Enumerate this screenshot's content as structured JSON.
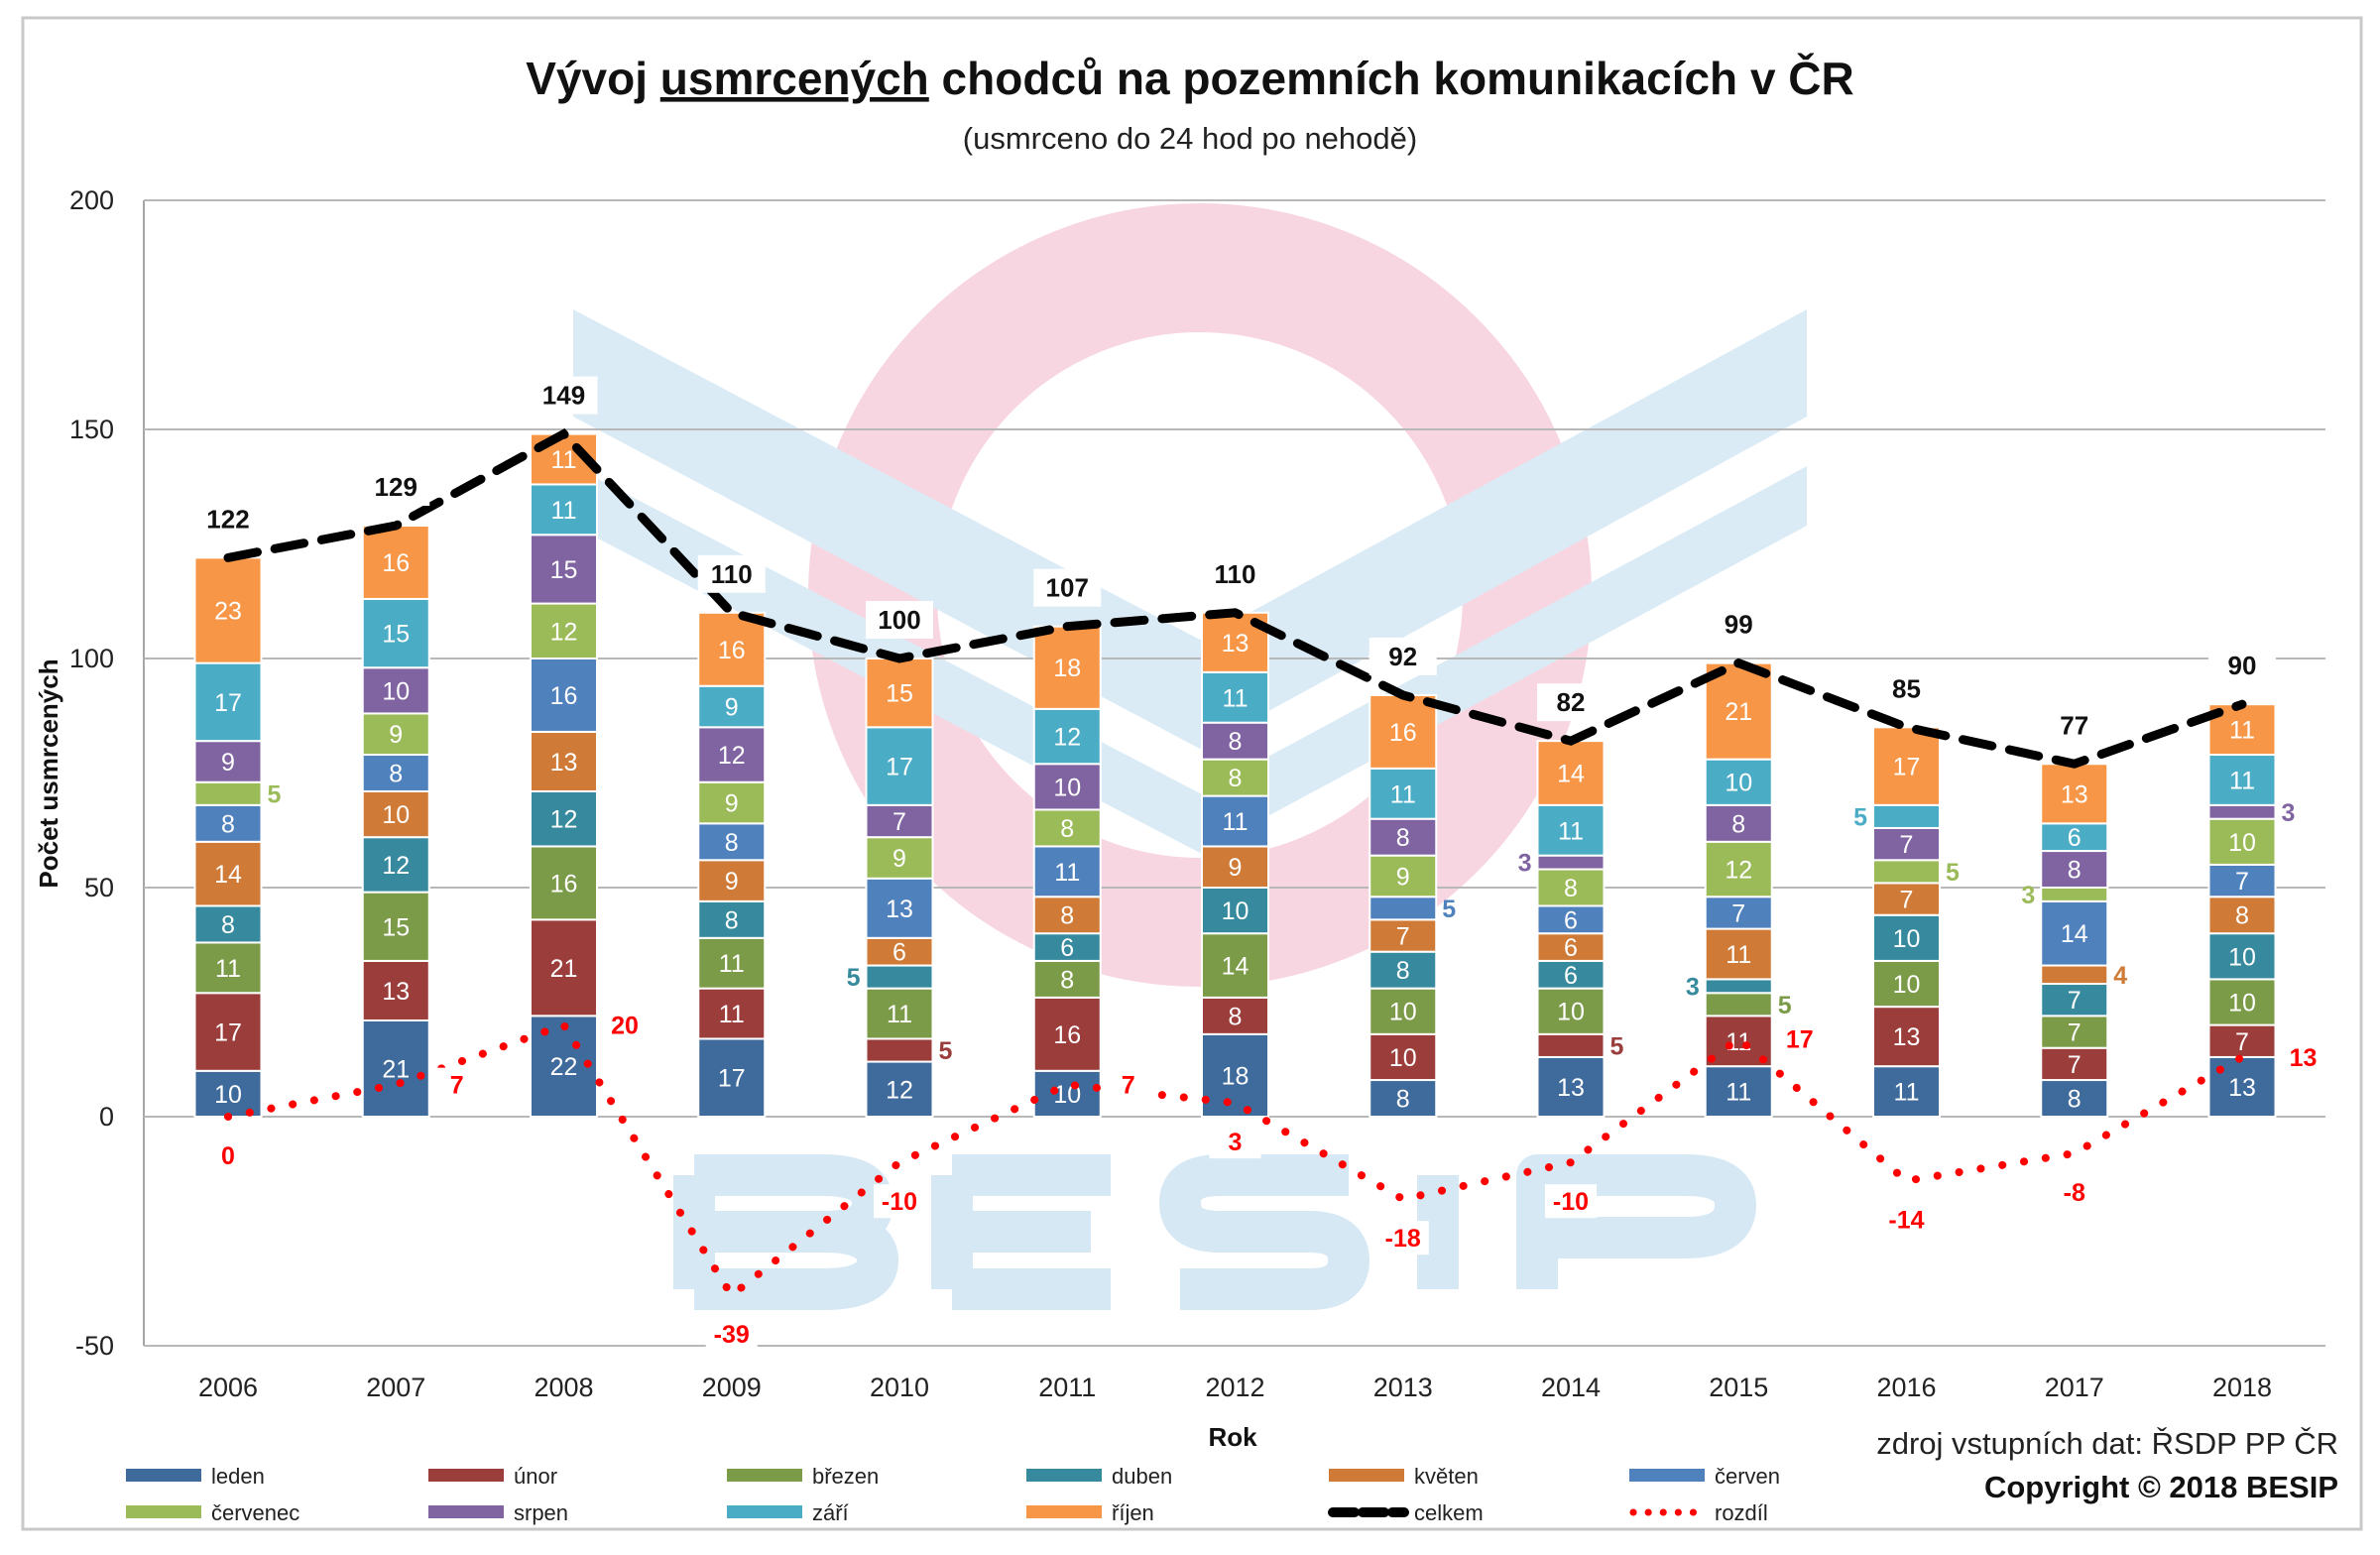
{
  "chart_data": {
    "type": "bar",
    "stacked": true,
    "title_parts": [
      "Vývoj ",
      "usmrcených",
      " chodců na pozemních komunikacích v ČR"
    ],
    "subtitle": "(usmrceno do 24 hod po nehodě)",
    "xlabel": "Rok",
    "ylabel": "Počet usmrcených",
    "ylim": [
      -50,
      200
    ],
    "yticks": [
      -50,
      0,
      50,
      100,
      150,
      200
    ],
    "grid": true,
    "legend_position": "bottom",
    "categories": [
      "2006",
      "2007",
      "2008",
      "2009",
      "2010",
      "2011",
      "2012",
      "2013",
      "2014",
      "2015",
      "2016",
      "2017",
      "2018"
    ],
    "series": [
      {
        "name": "leden",
        "color": "#3e6a9c",
        "values": [
          10,
          21,
          22,
          17,
          12,
          10,
          18,
          8,
          13,
          11,
          11,
          8,
          13
        ]
      },
      {
        "name": "únor",
        "color": "#9b3d3b",
        "values": [
          17,
          13,
          21,
          11,
          5,
          16,
          8,
          10,
          5,
          11,
          13,
          7,
          7
        ]
      },
      {
        "name": "březen",
        "color": "#7b9b48",
        "values": [
          11,
          15,
          16,
          11,
          11,
          8,
          14,
          10,
          10,
          5,
          10,
          7,
          10
        ]
      },
      {
        "name": "duben",
        "color": "#378a9e",
        "values": [
          8,
          12,
          12,
          8,
          5,
          6,
          10,
          8,
          6,
          3,
          10,
          7,
          10
        ]
      },
      {
        "name": "květen",
        "color": "#cf7b37",
        "values": [
          14,
          10,
          13,
          9,
          6,
          8,
          9,
          7,
          6,
          11,
          7,
          4,
          8
        ]
      },
      {
        "name": "červen",
        "color": "#4f81bd",
        "values": [
          8,
          8,
          16,
          8,
          13,
          11,
          11,
          5,
          6,
          7,
          0,
          14,
          7
        ]
      },
      {
        "name": "červenec",
        "color": "#9bbb59",
        "values": [
          5,
          9,
          12,
          9,
          9,
          8,
          8,
          9,
          8,
          12,
          5,
          3,
          10
        ]
      },
      {
        "name": "srpen",
        "color": "#8064a2",
        "values": [
          9,
          10,
          15,
          12,
          7,
          10,
          8,
          8,
          3,
          8,
          7,
          8,
          3
        ]
      },
      {
        "name": "září",
        "color": "#4bacc6",
        "values": [
          17,
          15,
          11,
          9,
          17,
          12,
          11,
          11,
          11,
          10,
          5,
          6,
          11
        ]
      },
      {
        "name": "říjen",
        "color": "#f79646",
        "values": [
          23,
          16,
          11,
          16,
          15,
          18,
          13,
          16,
          14,
          21,
          17,
          13,
          11
        ]
      }
    ],
    "lines": [
      {
        "name": "celkem",
        "type": "line",
        "style": "dashed",
        "color": "#000000",
        "values": [
          122,
          129,
          149,
          110,
          100,
          107,
          110,
          92,
          82,
          99,
          85,
          77,
          90
        ]
      },
      {
        "name": "rozdíl",
        "type": "line",
        "style": "dotted",
        "color": "#ff0000",
        "values": [
          0,
          7,
          20,
          -39,
          -10,
          7,
          3,
          -18,
          -10,
          17,
          -14,
          -8,
          13
        ]
      }
    ]
  },
  "footer": {
    "source": "zdroj vstupních dat: ŘSDP PP ČR",
    "copyright": "Copyright © 2018 BESIP"
  },
  "watermark": {
    "logo_text": "BESIP"
  }
}
